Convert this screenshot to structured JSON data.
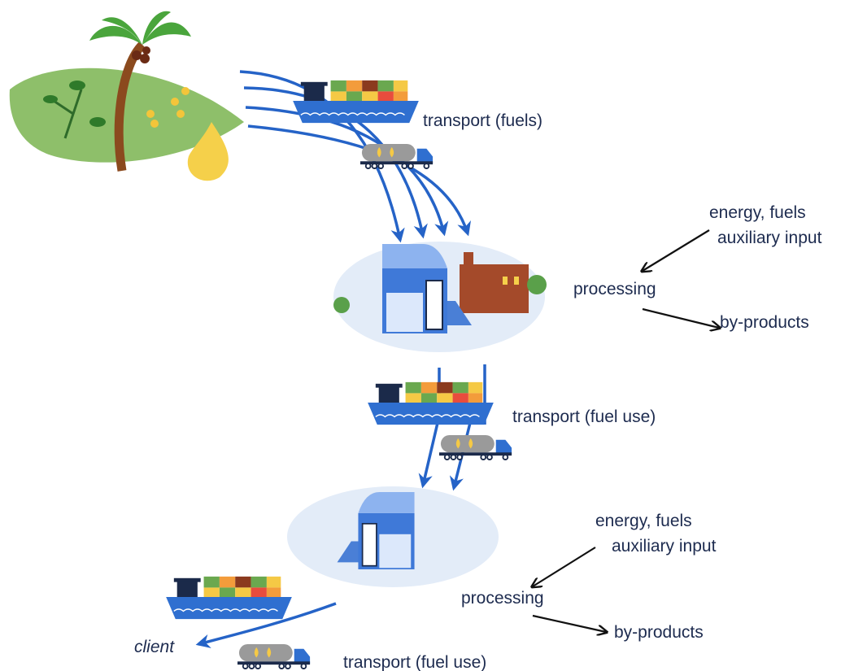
{
  "stage_1": {
    "transport": "transport (fuels)"
  },
  "stage_2": {
    "inputs": [
      "energy, fuels",
      "auxiliary input"
    ],
    "process": "processing",
    "output": "by-products",
    "transport": "transport (fuel use)"
  },
  "stage_3": {
    "inputs": [
      "energy, fuels",
      "auxiliary input"
    ],
    "process": "processing",
    "output": "by-products",
    "transport": "transport (fuel use)",
    "destination": "client"
  }
}
